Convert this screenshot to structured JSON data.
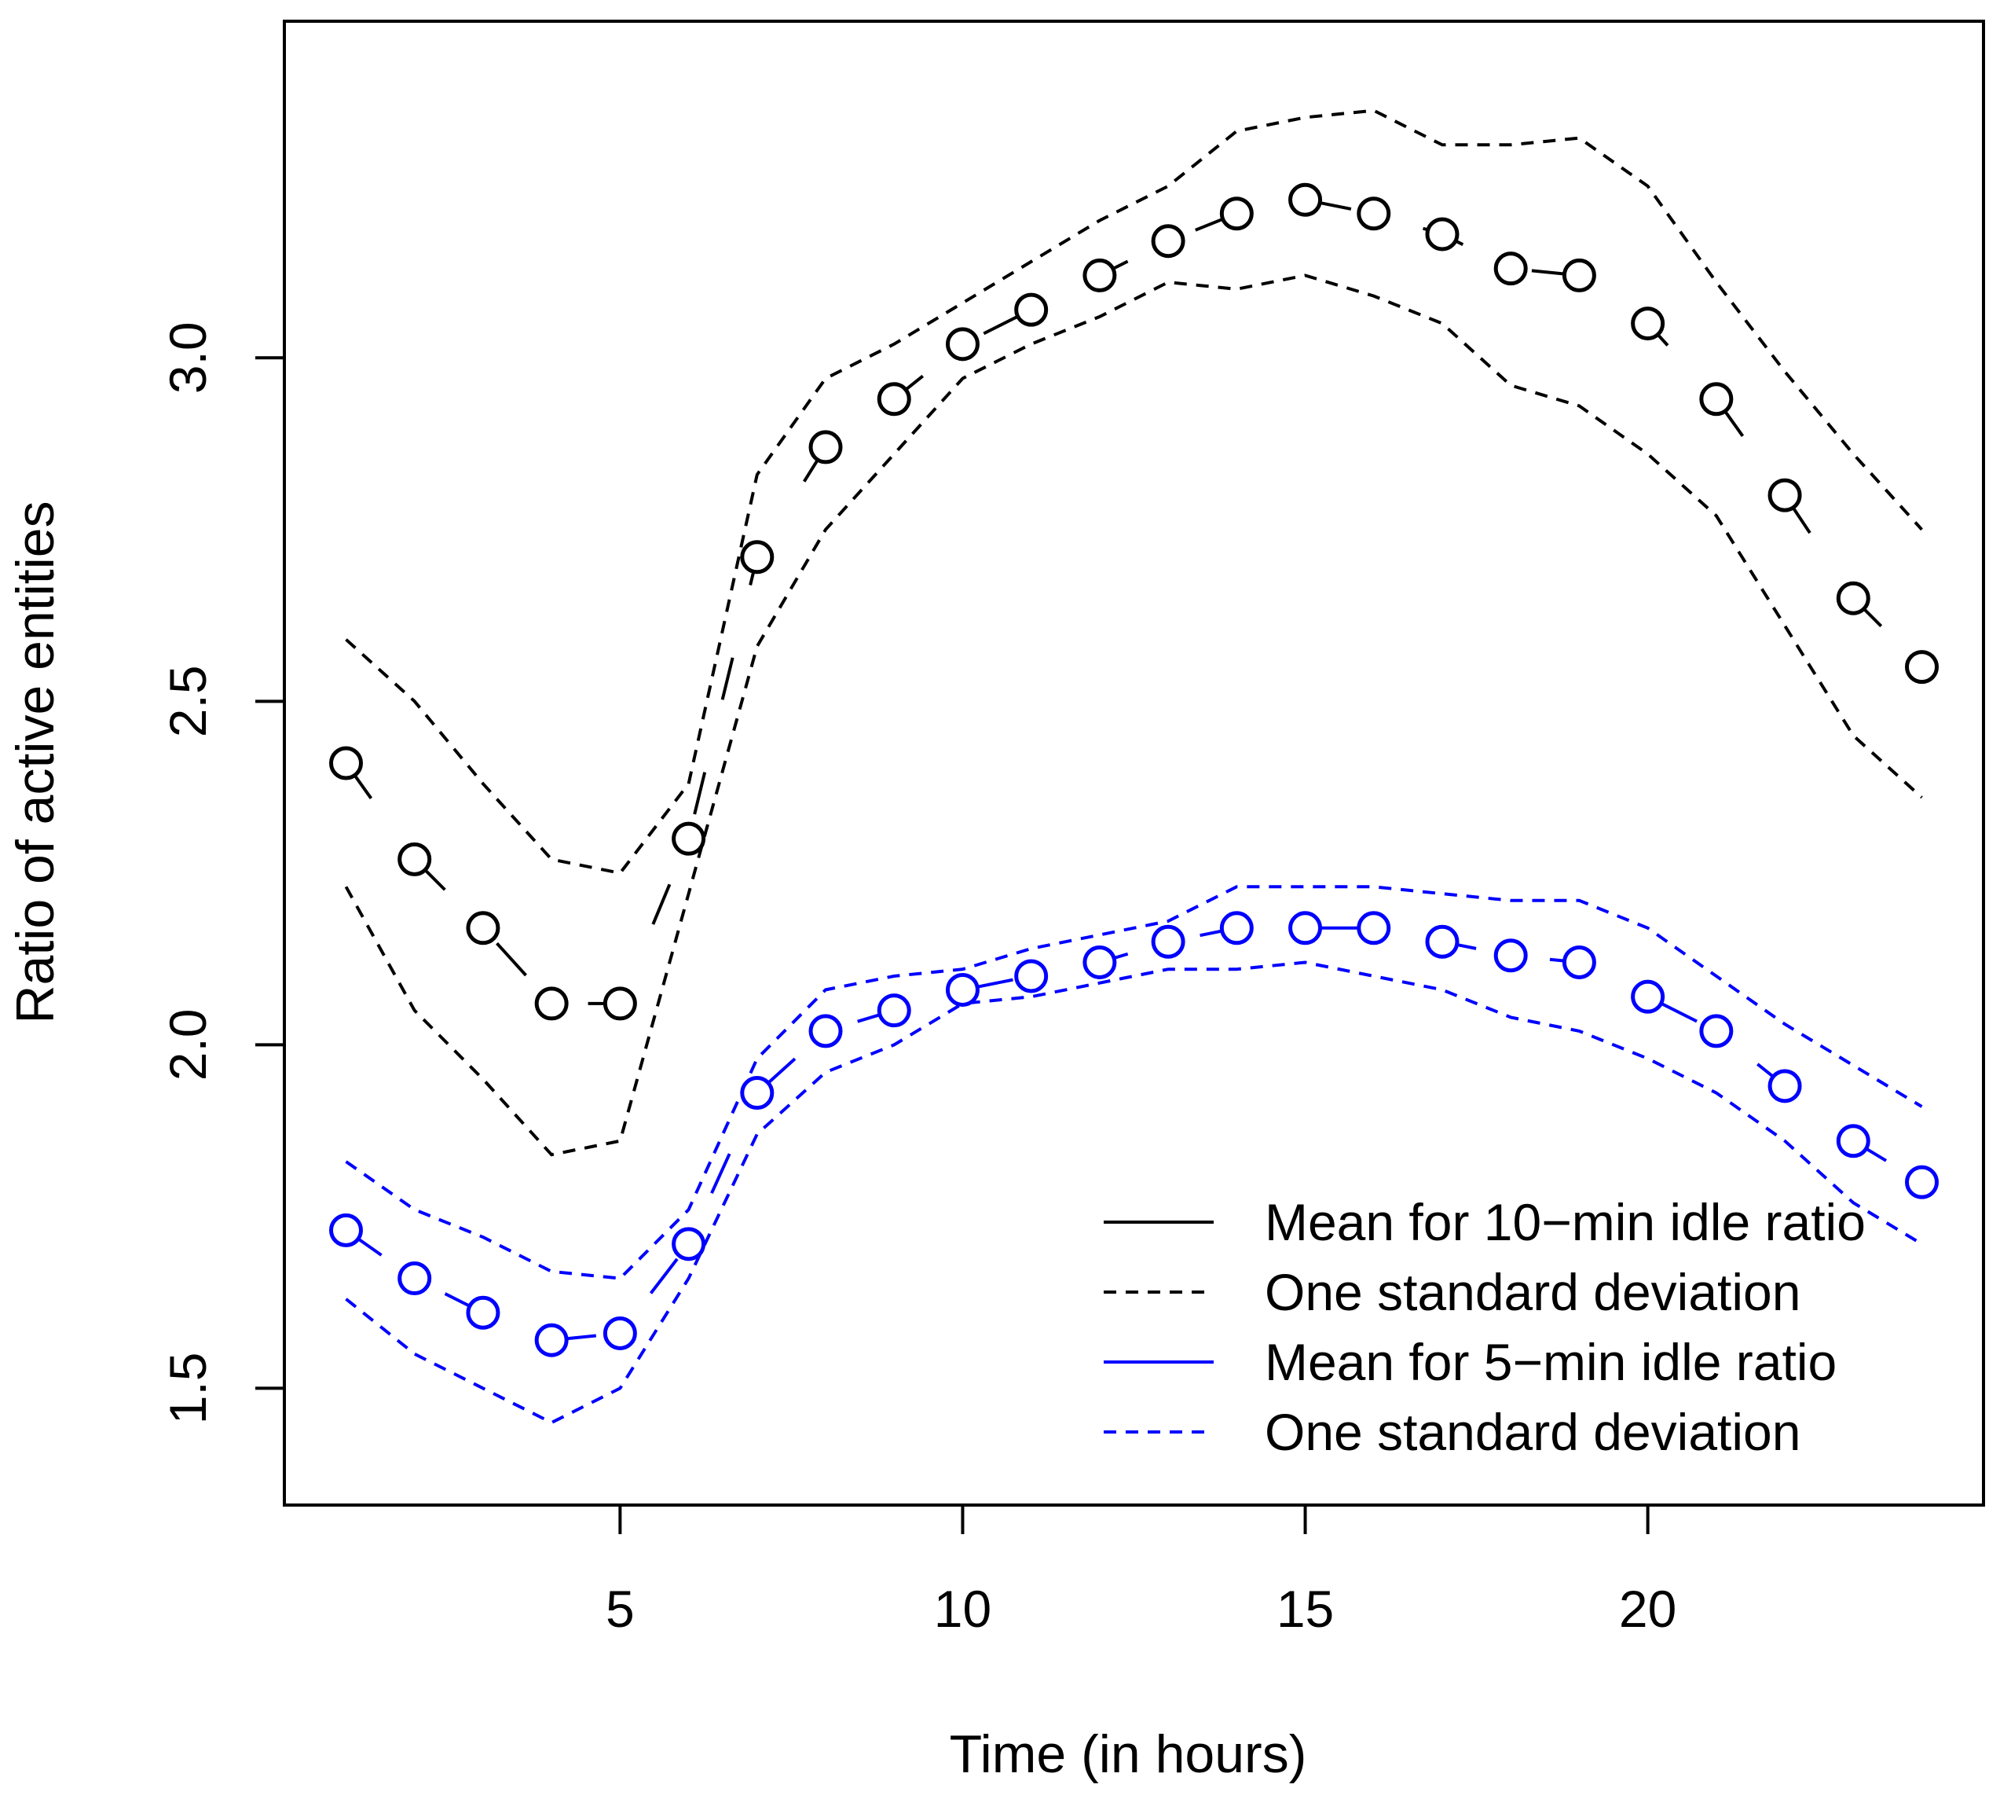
{
  "chart_data": {
    "type": "line",
    "title": "",
    "xlabel": "Time (in hours)",
    "ylabel": "Ratio of active entities",
    "xlim": [
      0.1,
      24.9
    ],
    "ylim": [
      1.33,
      3.49
    ],
    "xticks": [
      5,
      10,
      15,
      20
    ],
    "yticks": [
      1.5,
      2.0,
      2.5,
      3.0
    ],
    "ytick_labels": [
      "1.5",
      "2.0",
      "2.5",
      "3.0"
    ],
    "grid": false,
    "legend_position": "bottom-right",
    "x": [
      1,
      2,
      3,
      4,
      5,
      6,
      7,
      8,
      9,
      10,
      11,
      12,
      13,
      14,
      15,
      16,
      17,
      18,
      19,
      20,
      21,
      22,
      23,
      24
    ],
    "series": [
      {
        "name": "Mean for 10−min idle ratio",
        "style": "mean",
        "color": "#000000",
        "values": [
          2.41,
          2.27,
          2.17,
          2.06,
          2.06,
          2.3,
          2.71,
          2.87,
          2.94,
          3.02,
          3.07,
          3.12,
          3.17,
          3.21,
          3.23,
          3.21,
          3.18,
          3.13,
          3.12,
          3.05,
          2.94,
          2.8,
          2.65,
          2.55
        ],
        "band_name": "One standard deviation",
        "upper": [
          2.59,
          2.5,
          2.38,
          2.27,
          2.25,
          2.38,
          2.83,
          2.97,
          3.02,
          3.08,
          3.14,
          3.2,
          3.25,
          3.33,
          3.35,
          3.36,
          3.31,
          3.31,
          3.32,
          3.25,
          3.11,
          2.98,
          2.86,
          2.75
        ],
        "lower": [
          2.23,
          2.05,
          1.95,
          1.84,
          1.86,
          2.22,
          2.58,
          2.75,
          2.86,
          2.97,
          3.02,
          3.06,
          3.11,
          3.1,
          3.12,
          3.09,
          3.05,
          2.96,
          2.93,
          2.86,
          2.77,
          2.61,
          2.45,
          2.36
        ]
      },
      {
        "name": "Mean for 5−min idle ratio",
        "style": "mean",
        "color": "#0000ff",
        "values": [
          1.73,
          1.66,
          1.61,
          1.57,
          1.58,
          1.71,
          1.93,
          2.02,
          2.05,
          2.08,
          2.1,
          2.12,
          2.15,
          2.17,
          2.17,
          2.17,
          2.15,
          2.13,
          2.12,
          2.07,
          2.02,
          1.94,
          1.86,
          1.8
        ],
        "band_name": "One standard deviation",
        "upper": [
          1.83,
          1.76,
          1.72,
          1.67,
          1.66,
          1.76,
          1.98,
          2.08,
          2.1,
          2.11,
          2.14,
          2.16,
          2.18,
          2.23,
          2.23,
          2.23,
          2.22,
          2.21,
          2.21,
          2.17,
          2.1,
          2.03,
          1.97,
          1.91
        ],
        "lower": [
          1.63,
          1.55,
          1.5,
          1.45,
          1.5,
          1.66,
          1.87,
          1.96,
          2.0,
          2.06,
          2.07,
          2.09,
          2.11,
          2.11,
          2.12,
          2.1,
          2.08,
          2.04,
          2.02,
          1.98,
          1.93,
          1.86,
          1.77,
          1.71
        ]
      }
    ]
  }
}
